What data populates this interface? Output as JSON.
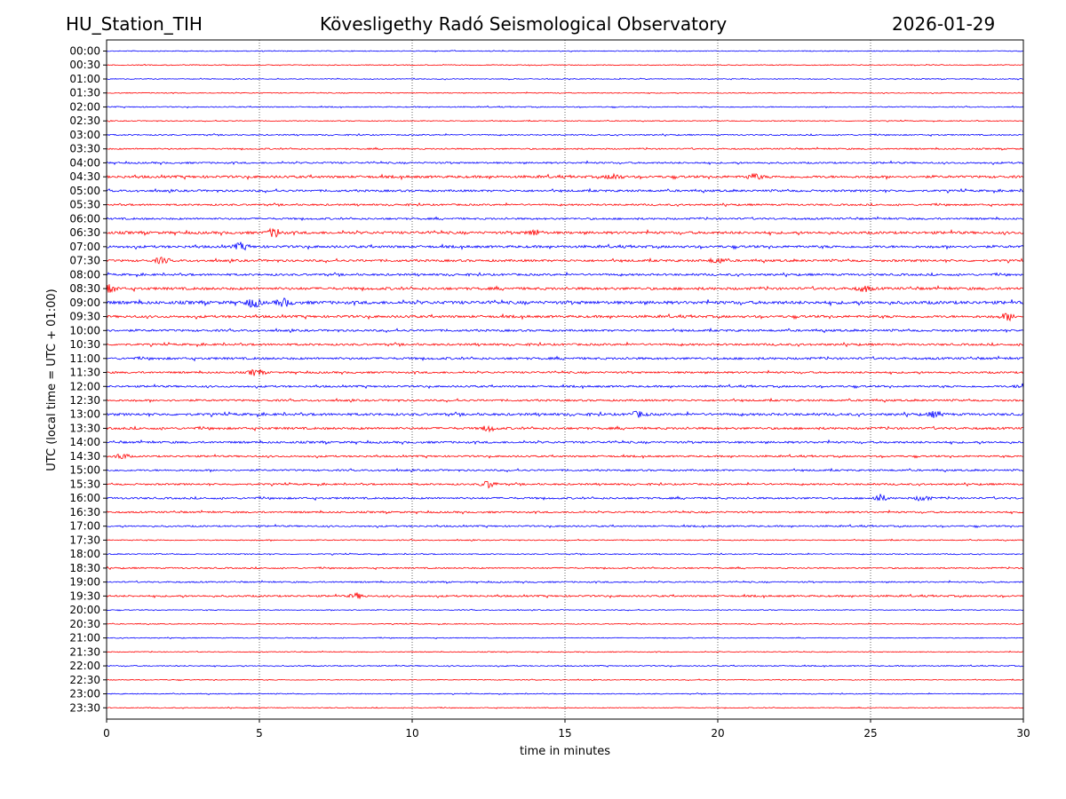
{
  "header": {
    "station": "HU_Station_TIH",
    "observatory": "Kövesligethy Radó Seismological Observatory",
    "date": "2026-01-29"
  },
  "chart_data": {
    "type": "line",
    "title": "Kövesligethy Radó Seismological Observatory",
    "xlabel": "time in minutes",
    "ylabel": "UTC (local time = UTC + 01:00)",
    "xlim": [
      0,
      30
    ],
    "x_ticks": [
      "0",
      "5",
      "10",
      "15",
      "20",
      "25",
      "30"
    ],
    "grid": "vertical dotted at x ticks",
    "row_labels": [
      "00:00",
      "00:30",
      "01:00",
      "01:30",
      "02:00",
      "02:30",
      "03:00",
      "03:30",
      "04:00",
      "04:30",
      "05:00",
      "05:30",
      "06:00",
      "06:30",
      "07:00",
      "07:30",
      "08:00",
      "08:30",
      "09:00",
      "09:30",
      "10:00",
      "10:30",
      "11:00",
      "11:30",
      "12:00",
      "12:30",
      "13:00",
      "13:30",
      "14:00",
      "14:30",
      "15:00",
      "15:30",
      "16:00",
      "16:30",
      "17:00",
      "17:30",
      "18:00",
      "18:30",
      "19:00",
      "19:30",
      "20:00",
      "20:30",
      "21:00",
      "21:30",
      "22:00",
      "22:30",
      "23:00",
      "23:30"
    ],
    "colors": {
      "full_hour": "#0000ff",
      "half_hour": "#ff0000"
    },
    "trace_activity": [
      0.5,
      0.5,
      0.5,
      0.5,
      0.6,
      0.5,
      0.7,
      0.8,
      1.0,
      1.4,
      1.2,
      1.0,
      1.1,
      1.5,
      1.4,
      1.3,
      1.2,
      1.5,
      1.8,
      1.4,
      1.2,
      1.2,
      1.3,
      1.1,
      1.1,
      1.1,
      1.4,
      1.3,
      1.2,
      1.0,
      1.0,
      1.0,
      1.1,
      1.0,
      0.9,
      0.6,
      0.6,
      0.8,
      0.8,
      1.0,
      0.5,
      0.5,
      0.5,
      0.5,
      0.6,
      0.5,
      0.5,
      0.5
    ],
    "events": [
      {
        "row": 9,
        "x": 16.6,
        "amp": 3
      },
      {
        "row": 9,
        "x": 21.2,
        "amp": 3
      },
      {
        "row": 13,
        "x": 5.5,
        "amp": 5
      },
      {
        "row": 13,
        "x": 14.0,
        "amp": 3
      },
      {
        "row": 14,
        "x": 4.4,
        "amp": 4
      },
      {
        "row": 15,
        "x": 1.8,
        "amp": 3
      },
      {
        "row": 15,
        "x": 20.0,
        "amp": 3
      },
      {
        "row": 17,
        "x": 0.1,
        "amp": 4
      },
      {
        "row": 17,
        "x": 24.8,
        "amp": 3
      },
      {
        "row": 18,
        "x": 4.8,
        "amp": 5
      },
      {
        "row": 18,
        "x": 5.8,
        "amp": 4
      },
      {
        "row": 19,
        "x": 29.5,
        "amp": 4
      },
      {
        "row": 23,
        "x": 4.9,
        "amp": 4
      },
      {
        "row": 24,
        "x": 30.0,
        "amp": 3
      },
      {
        "row": 26,
        "x": 17.4,
        "amp": 3
      },
      {
        "row": 26,
        "x": 27.1,
        "amp": 3
      },
      {
        "row": 27,
        "x": 12.5,
        "amp": 3
      },
      {
        "row": 29,
        "x": 0.5,
        "amp": 3
      },
      {
        "row": 31,
        "x": 12.5,
        "amp": 4
      },
      {
        "row": 32,
        "x": 25.3,
        "amp": 4
      },
      {
        "row": 32,
        "x": 26.7,
        "amp": 3
      },
      {
        "row": 39,
        "x": 8.2,
        "amp": 3
      }
    ]
  }
}
